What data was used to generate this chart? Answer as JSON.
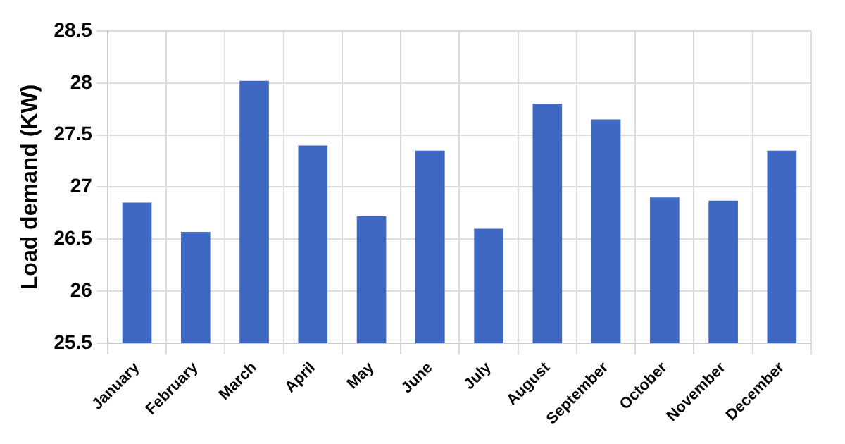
{
  "chart_data": {
    "type": "bar",
    "ylabel": "Load demand (KW)",
    "categories": [
      "January",
      "February",
      "March",
      "April",
      "May",
      "June",
      "July",
      "August",
      "September",
      "October",
      "November",
      "December"
    ],
    "values": [
      26.85,
      26.57,
      28.02,
      27.4,
      26.72,
      27.35,
      26.6,
      27.8,
      27.65,
      26.9,
      26.87,
      27.35
    ],
    "color": "#3f68c2",
    "ylim": [
      25.5,
      28.5
    ],
    "yticks": [
      25.5,
      26,
      26.5,
      27,
      27.5,
      28,
      28.5
    ],
    "grid": true,
    "legend": false
  }
}
